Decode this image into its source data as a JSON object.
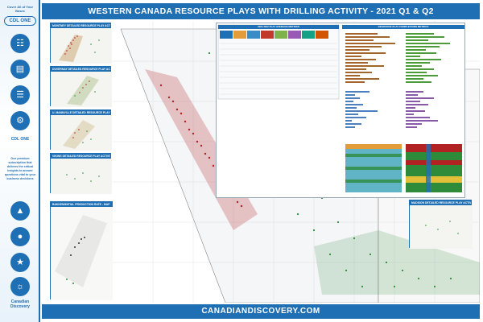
{
  "header": {
    "title": "WESTERN CANADA RESOURCE PLAYS WITH DRILLING ACTIVITY - 2021 Q1 & Q2"
  },
  "footer": {
    "url": "CANADIANDISCOVERY.COM"
  },
  "sidebar": {
    "tagline": "Cover All of Your Bases",
    "logo": "CDL ONE",
    "blurb": "One premium subscription that delivers the critical insights to answer questions vital to your business decisions",
    "brand": "Canadian Discovery",
    "icons": [
      "map-icon",
      "bar-chart-icon",
      "document-icon",
      "gear-icon",
      "well-icon",
      "drop-icon",
      "flame-icon",
      "globe-icon"
    ]
  },
  "insets": [
    {
      "title": "MONTNEY DETAILED RESOURCE PLAY ACTIVITY"
    },
    {
      "title": "DUVERNAY DETAILED RESOURCE PLAY ACTIVITY"
    },
    {
      "title": "U. MANNVILLE DETAILED RESOURCE PLAY ACTIVITY"
    },
    {
      "title": "VIKING DETAILED RESOURCE PLAY ACTIVITY"
    },
    {
      "title": "BAKKEN/INITIAL PRODUCTION RATE - MAP"
    },
    {
      "title": "MADISON DETAILED RESOURCE PLAY ACTIVITY"
    }
  ],
  "stats": {
    "table_title": "2021 DEV PLAY AVERAGE METRICS",
    "chart_title": "RESOURCE PLAY COMPLETIONS METRICS"
  },
  "colors": {
    "brand_blue": "#1f6fb5",
    "well_red": "#b22222",
    "well_green": "#2e8b3a",
    "chart_brown": "#a0662b",
    "chart_green": "#4c9a3a",
    "chart_blue": "#4a7fc0",
    "chart_purple": "#8a5aa8"
  }
}
